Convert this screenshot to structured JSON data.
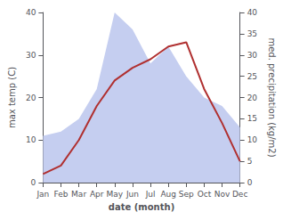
{
  "chart_data": {
    "type": "line",
    "categories": [
      "Jan",
      "Feb",
      "Mar",
      "Apr",
      "May",
      "Jun",
      "Jul",
      "Aug",
      "Sep",
      "Oct",
      "Nov",
      "Dec"
    ],
    "xlabel": "date (month)",
    "ylabel": "max temp (C)",
    "y2label": "med. precipitation (kg/m2)",
    "ylim": [
      0,
      40
    ],
    "yticks": [
      0,
      10,
      20,
      30,
      40
    ],
    "y2lim": [
      0,
      40
    ],
    "y2ticks": [
      0,
      5,
      10,
      15,
      20,
      25,
      30,
      35,
      40
    ],
    "grid": false,
    "series": [
      {
        "type": "area",
        "color": "#c5cef0",
        "axis": "y2",
        "values": [
          11,
          12,
          15,
          22,
          40,
          36,
          28,
          32,
          25,
          20,
          18,
          13
        ]
      },
      {
        "type": "line",
        "color": "#b03030",
        "values": [
          2,
          4,
          10,
          18,
          24,
          27,
          29,
          32,
          33,
          22,
          14,
          5
        ]
      }
    ]
  }
}
